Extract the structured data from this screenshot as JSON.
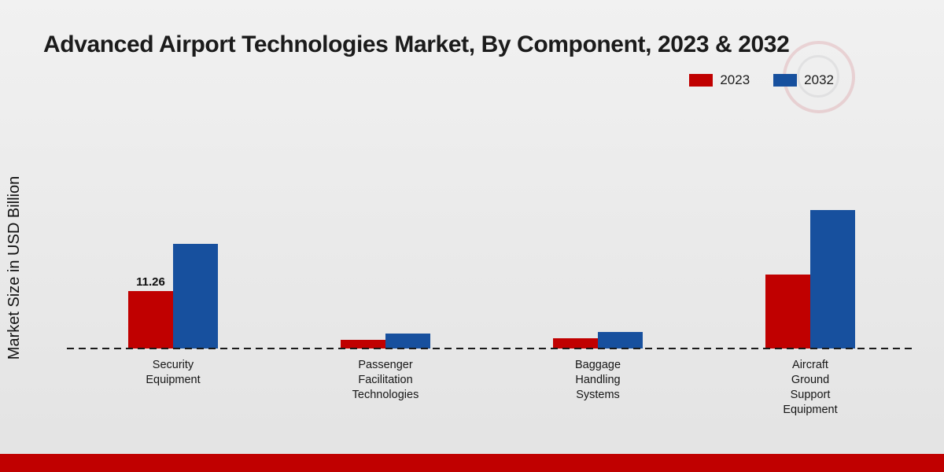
{
  "page": {
    "title": "Advanced Airport Technologies Market, By Component, 2023 & 2032",
    "y_axis_label": "Market Size in USD Billion"
  },
  "chart_data": {
    "type": "bar",
    "title": "Advanced Airport Technologies Market, By Component, 2023 & 2032",
    "xlabel": "",
    "ylabel": "Market Size in USD Billion",
    "categories": [
      "Security Equipment",
      "Passenger Facilitation Technologies",
      "Baggage Handling Systems",
      "Aircraft Ground Support Equipment"
    ],
    "series": [
      {
        "name": "2023",
        "color": "#c00000",
        "values": [
          11.26,
          1.7,
          2.0,
          14.5
        ]
      },
      {
        "name": "2032",
        "color": "#17509e",
        "values": [
          20.4,
          2.9,
          3.2,
          27.0
        ]
      }
    ],
    "value_labels": [
      {
        "series_index": 0,
        "category_index": 0,
        "text": "11.26"
      }
    ],
    "ylim": [
      0,
      30
    ],
    "grid": false,
    "legend_position": "top-right",
    "baseline_style": "dashed"
  },
  "footer": {
    "accent_color": "#c00000"
  }
}
